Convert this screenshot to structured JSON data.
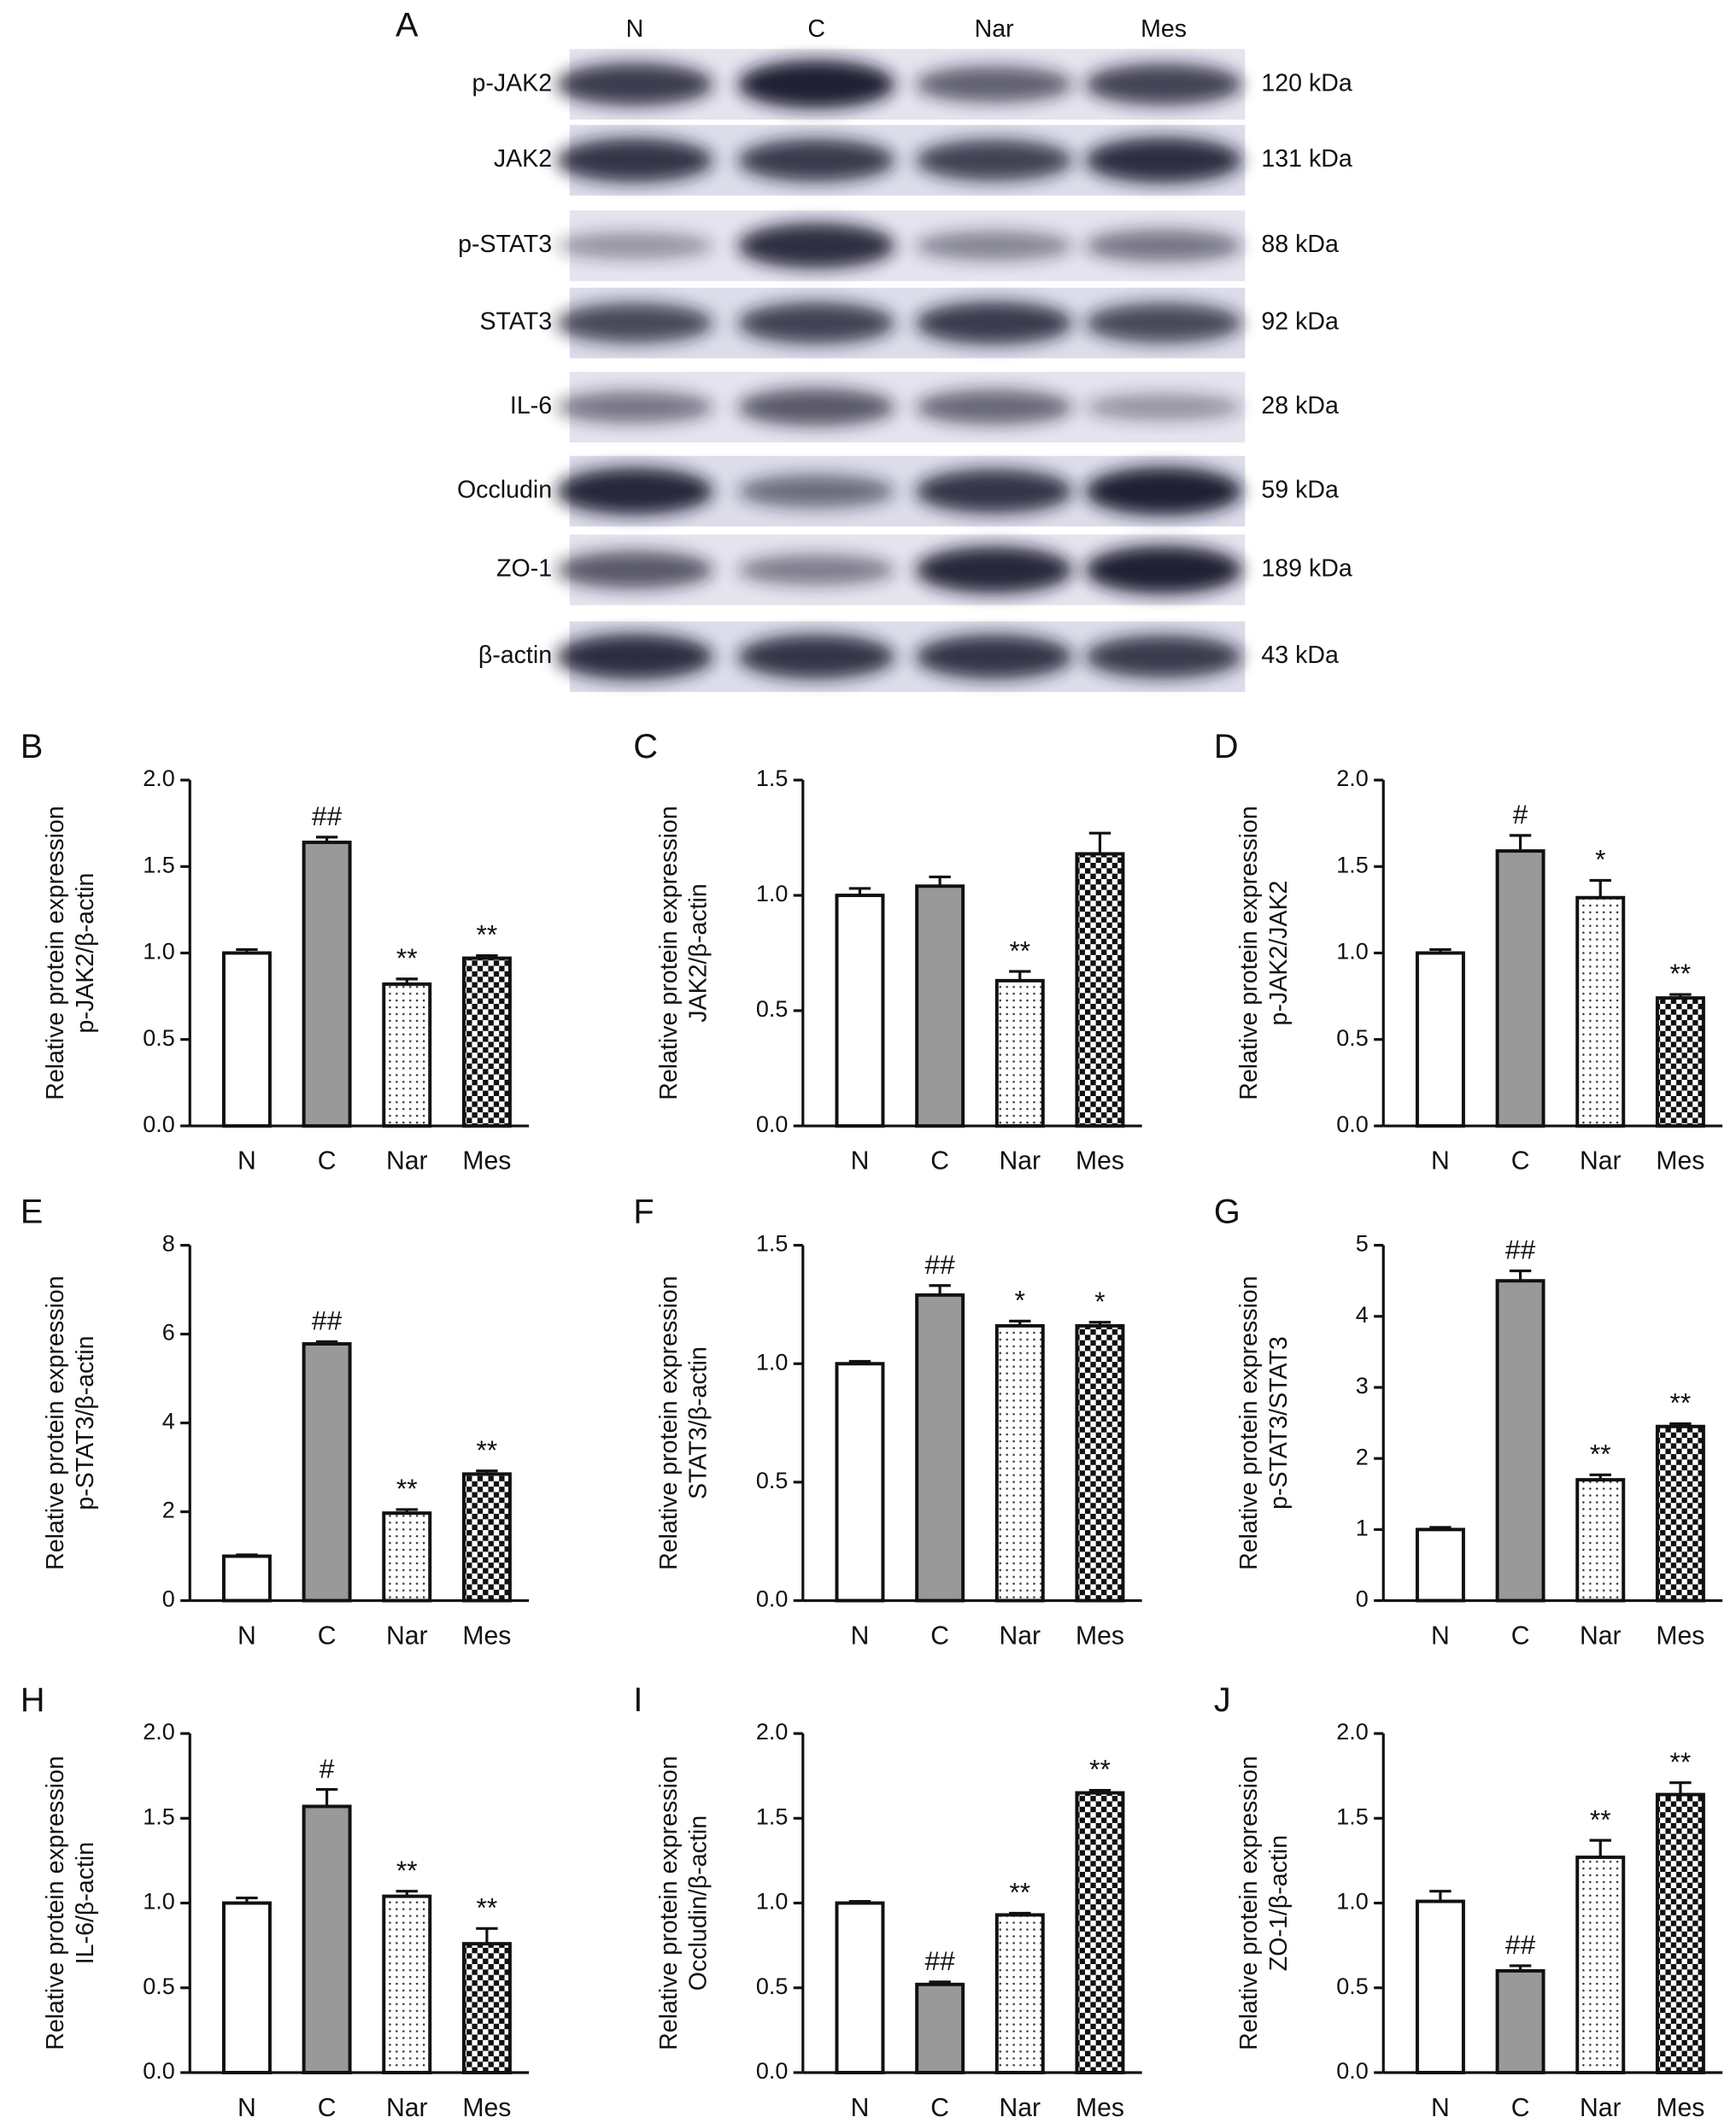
{
  "blot": {
    "panel": "A",
    "lanes": [
      "N",
      "C",
      "Nar",
      "Mes"
    ],
    "rows": [
      {
        "protein": "p-JAK2",
        "size": "120 kDa"
      },
      {
        "protein": "JAK2",
        "size": "131 kDa"
      },
      {
        "protein": "p-STAT3",
        "size": "88 kDa"
      },
      {
        "protein": "STAT3",
        "size": "92 kDa"
      },
      {
        "protein": "IL-6",
        "size": "28 kDa"
      },
      {
        "protein": "Occludin",
        "size": "59 kDa"
      },
      {
        "protein": "ZO-1",
        "size": "189 kDa"
      },
      {
        "protein": "β-actin",
        "size": "43 kDa"
      }
    ]
  },
  "chart_data": [
    {
      "type": "bar",
      "panel": "B",
      "y_label": [
        "Relative protein expression",
        "p-JAK2/β-actin"
      ],
      "categories": [
        "N",
        "C",
        "Nar",
        "Mes"
      ],
      "values": [
        1.0,
        1.64,
        0.82,
        0.97
      ],
      "errors": [
        0.02,
        0.03,
        0.03,
        0.015
      ],
      "annotations": [
        null,
        "##",
        "**",
        "**"
      ],
      "bar_styles": [
        "open",
        "gray",
        "dotted",
        "checkered"
      ],
      "ylim": [
        0,
        2
      ],
      "yticks": [
        {
          "value": 0,
          "label": "0.0"
        },
        0.5,
        {
          "value": 1,
          "label": "1.0"
        },
        1.5,
        {
          "value": 2,
          "label": "2.0"
        }
      ]
    },
    {
      "type": "bar",
      "panel": "C",
      "y_label": [
        "Relative protein expression",
        "JAK2/β-actin"
      ],
      "categories": [
        "N",
        "C",
        "Nar",
        "Mes"
      ],
      "values": [
        1.0,
        1.04,
        0.63,
        1.18
      ],
      "errors": [
        0.03,
        0.04,
        0.04,
        0.09
      ],
      "annotations": [
        null,
        null,
        "**",
        null
      ],
      "bar_styles": [
        "open",
        "gray",
        "dotted",
        "checkered"
      ],
      "ylim": [
        0,
        1.5
      ],
      "yticks": [
        {
          "value": 0,
          "label": "0.0"
        },
        0.5,
        {
          "value": 1,
          "label": "1.0"
        },
        1.5
      ]
    },
    {
      "type": "bar",
      "panel": "D",
      "y_label": [
        "Relative protein expression",
        "p-JAK2/JAK2"
      ],
      "categories": [
        "N",
        "C",
        "Nar",
        "Mes"
      ],
      "values": [
        1.0,
        1.59,
        1.32,
        0.74
      ],
      "errors": [
        0.02,
        0.09,
        0.1,
        0.02
      ],
      "annotations": [
        null,
        "#",
        "*",
        "**"
      ],
      "bar_styles": [
        "open",
        "gray",
        "dotted",
        "checkered"
      ],
      "ylim": [
        0,
        2
      ],
      "yticks": [
        {
          "value": 0,
          "label": "0.0"
        },
        0.5,
        {
          "value": 1,
          "label": "1.0"
        },
        1.5,
        {
          "value": 2,
          "label": "2.0"
        }
      ]
    },
    {
      "type": "bar",
      "panel": "E",
      "y_label": [
        "Relative protein expression",
        "p-STAT3/β-actin"
      ],
      "categories": [
        "N",
        "C",
        "Nar",
        "Mes"
      ],
      "values": [
        1.0,
        5.78,
        1.97,
        2.85
      ],
      "errors": [
        0.03,
        0.05,
        0.08,
        0.07
      ],
      "annotations": [
        null,
        "##",
        "**",
        "**"
      ],
      "bar_styles": [
        "open",
        "gray",
        "dotted",
        "checkered"
      ],
      "ylim": [
        0,
        8
      ],
      "yticks": [
        0,
        2,
        4,
        6,
        8
      ]
    },
    {
      "type": "bar",
      "panel": "F",
      "y_label": [
        "Relative protein expression",
        "STAT3/β-actin"
      ],
      "categories": [
        "N",
        "C",
        "Nar",
        "Mes"
      ],
      "values": [
        1.0,
        1.29,
        1.16,
        1.16
      ],
      "errors": [
        0.01,
        0.04,
        0.02,
        0.015
      ],
      "annotations": [
        null,
        "##",
        "*",
        "*"
      ],
      "bar_styles": [
        "open",
        "gray",
        "dotted",
        "checkered"
      ],
      "ylim": [
        0,
        1.5
      ],
      "yticks": [
        {
          "value": 0,
          "label": "0.0"
        },
        0.5,
        {
          "value": 1,
          "label": "1.0"
        },
        1.5
      ]
    },
    {
      "type": "bar",
      "panel": "G",
      "y_label": [
        "Relative protein expression",
        "p-STAT3/STAT3"
      ],
      "categories": [
        "N",
        "C",
        "Nar",
        "Mes"
      ],
      "values": [
        1.0,
        4.5,
        1.7,
        2.45
      ],
      "errors": [
        0.03,
        0.14,
        0.07,
        0.04
      ],
      "annotations": [
        null,
        "##",
        "**",
        "**"
      ],
      "bar_styles": [
        "open",
        "gray",
        "dotted",
        "checkered"
      ],
      "ylim": [
        0,
        5
      ],
      "yticks": [
        0,
        1,
        2,
        3,
        4,
        5
      ]
    },
    {
      "type": "bar",
      "panel": "H",
      "y_label": [
        "Relative protein expression",
        "IL-6/β-actin"
      ],
      "categories": [
        "N",
        "C",
        "Nar",
        "Mes"
      ],
      "values": [
        1.0,
        1.57,
        1.04,
        0.76
      ],
      "errors": [
        0.03,
        0.1,
        0.03,
        0.09
      ],
      "annotations": [
        null,
        "#",
        "**",
        "**"
      ],
      "bar_styles": [
        "open",
        "gray",
        "dotted",
        "checkered"
      ],
      "ylim": [
        0,
        2
      ],
      "yticks": [
        {
          "value": 0,
          "label": "0.0"
        },
        0.5,
        {
          "value": 1,
          "label": "1.0"
        },
        1.5,
        {
          "value": 2,
          "label": "2.0"
        }
      ]
    },
    {
      "type": "bar",
      "panel": "I",
      "y_label": [
        "Relative protein expression",
        "Occludin/β-actin"
      ],
      "categories": [
        "N",
        "C",
        "Nar",
        "Mes"
      ],
      "values": [
        1.0,
        0.52,
        0.93,
        1.65
      ],
      "errors": [
        0.01,
        0.015,
        0.01,
        0.015
      ],
      "annotations": [
        null,
        "##",
        "**",
        "**"
      ],
      "bar_styles": [
        "open",
        "gray",
        "dotted",
        "checkered"
      ],
      "ylim": [
        0,
        2
      ],
      "yticks": [
        {
          "value": 0,
          "label": "0.0"
        },
        0.5,
        {
          "value": 1,
          "label": "1.0"
        },
        1.5,
        {
          "value": 2,
          "label": "2.0"
        }
      ]
    },
    {
      "type": "bar",
      "panel": "J",
      "y_label": [
        "Relative protein expression",
        "ZO-1/β-actin"
      ],
      "categories": [
        "N",
        "C",
        "Nar",
        "Mes"
      ],
      "values": [
        1.01,
        0.6,
        1.27,
        1.64
      ],
      "errors": [
        0.06,
        0.03,
        0.1,
        0.07
      ],
      "annotations": [
        null,
        "##",
        "**",
        "**"
      ],
      "bar_styles": [
        "open",
        "gray",
        "dotted",
        "checkered"
      ],
      "ylim": [
        0,
        2
      ],
      "yticks": [
        {
          "value": 0,
          "label": "0.0"
        },
        0.5,
        {
          "value": 1,
          "label": "1.0"
        },
        1.5,
        {
          "value": 2,
          "label": "2.0"
        }
      ]
    }
  ]
}
